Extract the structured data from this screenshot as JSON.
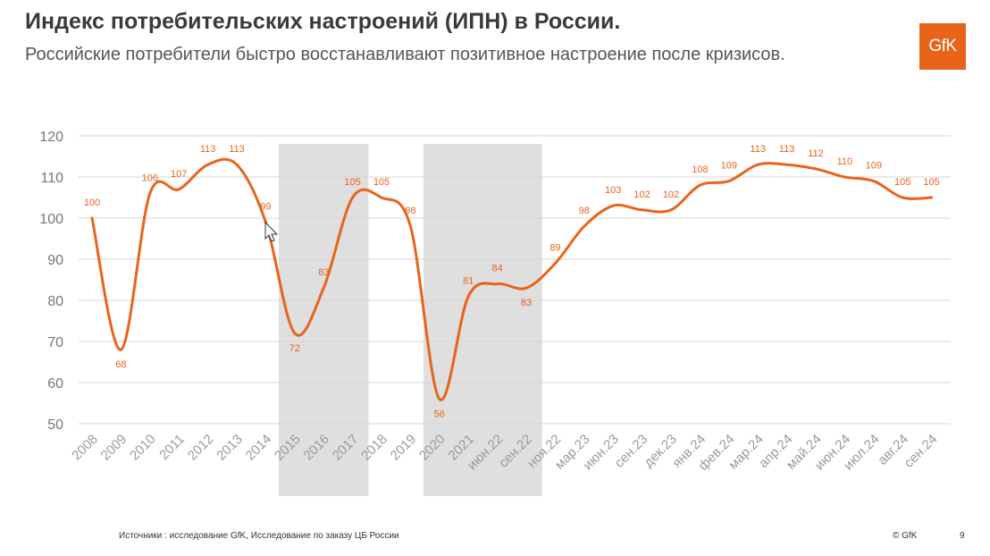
{
  "header": {
    "title": "Индекс потребительских настроений (ИПН) в России.",
    "subtitle": "Российские потребители быстро восстанавливают позитивное настроение после кризисов."
  },
  "logo": {
    "text": "GfK",
    "color": "#e8641b"
  },
  "footer": {
    "source": "Источники : исследование GfK, Исследование по заказу ЦБ России",
    "copyright": "© GfK",
    "page": "9"
  },
  "chart_data": {
    "type": "line",
    "categories": [
      "2008",
      "2009",
      "2010",
      "2011",
      "2012",
      "2013",
      "2014",
      "2015",
      "2016",
      "2017",
      "2018",
      "2019",
      "2020",
      "2021",
      "июн.22",
      "сен.22",
      "ноя.22",
      "мар.23",
      "июн.23",
      "сен.23",
      "дек.23",
      "янв.24",
      "фев.24",
      "мар.24",
      "апр.24",
      "май.24",
      "июн.24",
      "июл.24",
      "авг.24",
      "сен.24"
    ],
    "series": [
      {
        "color": "#e8641b",
        "values": [
          100,
          68,
          106,
          107,
          113,
          113,
          99,
          72,
          83,
          105,
          105,
          98,
          56,
          81,
          84,
          83,
          89,
          98,
          103,
          102,
          102,
          108,
          109,
          113,
          113,
          112,
          110,
          109,
          105,
          105
        ]
      }
    ],
    "ylim": [
      50,
      120
    ],
    "yticks": [
      50,
      60,
      70,
      80,
      90,
      100,
      110,
      120
    ],
    "grid": true,
    "shaded_ranges": [
      {
        "from": "2015",
        "to": "2017"
      },
      {
        "from": "2020",
        "to": "сен.22"
      }
    ],
    "shade_color": "#d9d9d9"
  }
}
